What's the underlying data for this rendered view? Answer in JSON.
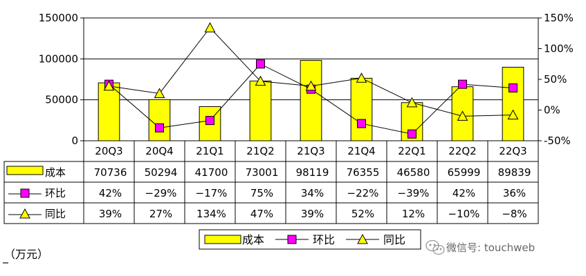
{
  "unit_label": "（万元）",
  "watermark": "微信号: touchweb",
  "chart_data": {
    "type": "bar",
    "categories": [
      "20Q3",
      "20Q4",
      "21Q1",
      "21Q2",
      "21Q3",
      "21Q4",
      "22Q1",
      "22Q2",
      "22Q3"
    ],
    "y_left": {
      "ylim": [
        0,
        150000
      ],
      "ticks": [
        "0",
        "50000",
        "100000",
        "150000"
      ],
      "tick_values": [
        0,
        50000,
        100000,
        150000
      ]
    },
    "y_right": {
      "ylim": [
        -50,
        150
      ],
      "ticks": [
        "-50%",
        "0%",
        "50%",
        "100%",
        "150%"
      ],
      "tick_values": [
        -50,
        0,
        50,
        100,
        150
      ]
    },
    "grid": true,
    "legend_position": "bottom",
    "series": [
      {
        "name": "成本",
        "kind": "bar",
        "axis": "left",
        "color": "#FFFF00",
        "values": [
          70736,
          50294,
          41700,
          73001,
          98119,
          76355,
          46580,
          65999,
          89839
        ],
        "labels": [
          "70736",
          "50294",
          "41700",
          "73001",
          "98119",
          "76355",
          "46580",
          "65999",
          "89839"
        ]
      },
      {
        "name": "环比",
        "kind": "line",
        "axis": "right",
        "color": "#FF00FF",
        "marker": "square",
        "values": [
          42,
          -29,
          -17,
          75,
          34,
          -22,
          -39,
          42,
          36
        ],
        "labels": [
          "42%",
          "−29%",
          "−17%",
          "75%",
          "34%",
          "−22%",
          "−39%",
          "42%",
          "36%"
        ]
      },
      {
        "name": "同比",
        "kind": "line",
        "axis": "right",
        "color": "#FFFF00",
        "marker": "triangle",
        "values": [
          39,
          27,
          134,
          47,
          39,
          52,
          12,
          -10,
          -8
        ],
        "labels": [
          "39%",
          "27%",
          "134%",
          "47%",
          "39%",
          "52%",
          "12%",
          "−10%",
          "−8%"
        ]
      }
    ]
  }
}
